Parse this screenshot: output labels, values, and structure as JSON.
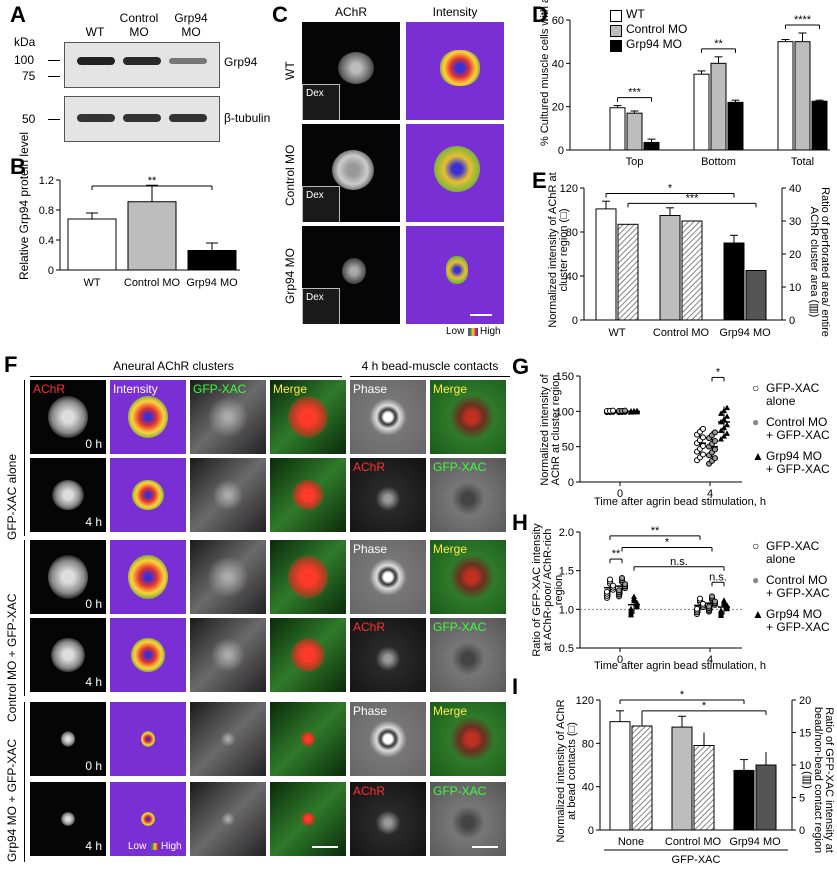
{
  "panels": {
    "A": "A",
    "B": "B",
    "C": "C",
    "D": "D",
    "E": "E",
    "F": "F",
    "G": "G",
    "H": "H",
    "I": "I"
  },
  "panelA": {
    "kda": "kDa",
    "col_wt": "WT",
    "col_ctrl_1": "Control",
    "col_ctrl_2": "MO",
    "col_grp_1": "Grp94",
    "col_grp_2": "MO",
    "marker_100": "100",
    "marker_75": "75",
    "marker_50": "50",
    "band_grp94": "Grp94",
    "band_tubulin": "β-tubulin",
    "band_intensity": [
      0.85,
      0.8,
      0.45
    ]
  },
  "panelC": {
    "col_achr": "AChR",
    "col_intensity": "Intensity",
    "row_wt": "WT",
    "row_ctrl": "Control MO",
    "row_grp": "Grp94 MO",
    "dex": "Dex",
    "low": "Low",
    "high": "High"
  },
  "panelF": {
    "header_left": "Aneural AChR clusters",
    "header_right": "4 h bead-muscle contacts",
    "col_achr": "AChR",
    "col_intensity": "Intensity",
    "col_gfp": "GFP-XAC",
    "col_merge": "Merge",
    "phase": "Phase",
    "merge": "Merge",
    "achr": "AChR",
    "gfp": "GFP-XAC",
    "t0": "0 h",
    "t4": "4 h",
    "row1": "GFP-XAC alone",
    "row2": "Control MO + GFP-XAC",
    "row3": "Grp94 MO + GFP-XAC",
    "low": "Low",
    "high": "High"
  },
  "chart_data": [
    {
      "id": "B",
      "type": "bar",
      "categories": [
        "WT",
        "Control MO",
        "Grp94 MO"
      ],
      "values": [
        0.68,
        0.91,
        0.26
      ],
      "errors": [
        0.08,
        0.22,
        0.1
      ],
      "ylabel": "Relative Grp94 protein level",
      "ylim": [
        0,
        1.2
      ],
      "yticks": [
        "0",
        "0.4",
        "0.8",
        "1.2"
      ],
      "sig": [
        "**"
      ]
    },
    {
      "id": "D",
      "type": "bar",
      "categories": [
        "Top",
        "Bottom",
        "Total"
      ],
      "series": [
        {
          "name": "WT",
          "values": [
            19.5,
            35,
            50
          ]
        },
        {
          "name": "Control MO",
          "values": [
            17,
            40,
            50
          ]
        },
        {
          "name": "Grp94 MO",
          "values": [
            3.5,
            22,
            22.5
          ]
        }
      ],
      "errors": [
        [
          1,
          1.5,
          1
        ],
        [
          1,
          3,
          4
        ],
        [
          1.5,
          1,
          0.5
        ]
      ],
      "ylabel": "% Cultured muscle cells with aneural AChR clusters",
      "ylim": [
        0,
        60
      ],
      "yticks": [
        "0",
        "20",
        "40",
        "60"
      ],
      "sig": [
        "***",
        "**",
        "****"
      ]
    },
    {
      "id": "E",
      "type": "bar",
      "categories": [
        "WT",
        "Control MO",
        "Grp94 MO"
      ],
      "series": [
        {
          "name": "Normalized intensity",
          "values": [
            101,
            95,
            70
          ]
        },
        {
          "name": "Ratio",
          "values": [
            29,
            30,
            15
          ]
        }
      ],
      "ylabel": "Normalized intensity of AChR at cluster region (□)",
      "y2label": "Ratio of perforated area/ entire AChR cluster area (▥)",
      "ylim": [
        0,
        120
      ],
      "y2lim": [
        0,
        40
      ],
      "yticks": [
        "0",
        "40",
        "80",
        "120"
      ],
      "y2ticks": [
        "0",
        "10",
        "20",
        "30",
        "40"
      ],
      "sig": [
        "*",
        "***"
      ]
    },
    {
      "id": "G",
      "type": "scatter",
      "xticks": [
        "0",
        "4"
      ],
      "xlabel": "Time after agrin bead stimulation, h",
      "ylabel": "Normalized intensity of AChR at cluster region",
      "ylim": [
        0,
        150
      ],
      "yticks": [
        "0",
        "50",
        "100",
        "150"
      ],
      "series": [
        {
          "name": "GFP-XAC alone",
          "means": [
            100,
            55
          ]
        },
        {
          "name": "Control MO + GFP-XAC",
          "means": [
            100,
            50
          ]
        },
        {
          "name": "Grp94 MO + GFP-XAC",
          "means": [
            100,
            85
          ]
        }
      ],
      "sig": [
        "*"
      ]
    },
    {
      "id": "H",
      "type": "scatter",
      "xticks": [
        "0",
        "4"
      ],
      "xlabel": "Time after agrin bead stimulation, h",
      "ylabel": "Ratio of GFP-XAC intensity at AChR-poor/ AChR-rich region",
      "ylim": [
        0.5,
        2.0
      ],
      "yticks": [
        "0.5",
        "1.0",
        "1.5",
        "2.0"
      ],
      "series": [
        {
          "name": "GFP-XAC alone",
          "means": [
            1.28,
            1.05
          ]
        },
        {
          "name": "Control MO + GFP-XAC",
          "means": [
            1.3,
            1.08
          ]
        },
        {
          "name": "Grp94 MO + GFP-XAC",
          "means": [
            1.06,
            1.03
          ]
        }
      ],
      "sig": [
        "**",
        "**",
        "*",
        "n.s.",
        "n.s."
      ]
    },
    {
      "id": "I",
      "type": "bar",
      "categories": [
        "None",
        "Control MO",
        "Grp94 MO"
      ],
      "group_label": "GFP-XAC",
      "series": [
        {
          "name": "Normalized intensity",
          "values": [
            100,
            95,
            55
          ]
        },
        {
          "name": "Ratio",
          "values": [
            16,
            13,
            10
          ]
        }
      ],
      "ylabel": "Normalized intensity of AChR at bead contacts (□)",
      "y2label": "Ratio of GFP-XAC intensity at bead/non-bead contact region (▥)",
      "ylim": [
        0,
        120
      ],
      "y2lim": [
        0,
        20
      ],
      "yticks": [
        "0",
        "40",
        "80",
        "120"
      ],
      "y2ticks": [
        "0",
        "5",
        "10",
        "15",
        "20"
      ],
      "sig": [
        "*",
        "*"
      ]
    }
  ],
  "legendD": [
    "WT",
    "Control MO",
    "Grp94 MO"
  ],
  "legendGH": [
    {
      "l1": "GFP-XAC",
      "l2": "alone"
    },
    {
      "l1": "Control MO",
      "l2": "+ GFP-XAC"
    },
    {
      "l1": "Grp94 MO",
      "l2": "+ GFP-XAC"
    }
  ],
  "colors": {
    "wt": "#ffffff",
    "ctrl": "#bdbdbd",
    "grp": "#000000",
    "dex_bg": "#1a1a1a",
    "achr_red": "#ff2a2a",
    "gfp_green": "#3cff3c",
    "merge_yellow": "#ffee44",
    "intensity_bg": "#7a2fd4"
  }
}
